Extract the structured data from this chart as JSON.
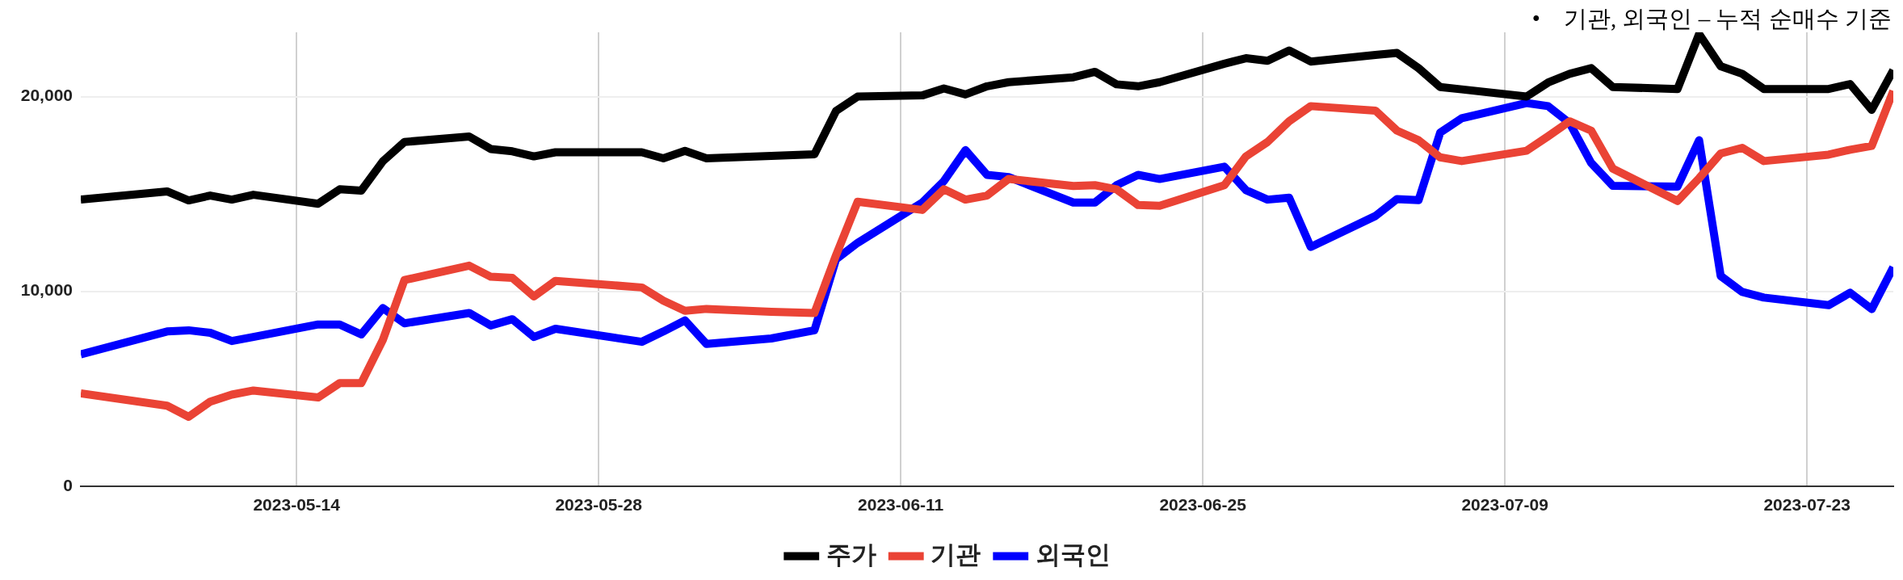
{
  "chart_data": {
    "type": "line",
    "x": [
      "2023-05-04",
      "2023-05-08",
      "2023-05-09",
      "2023-05-10",
      "2023-05-11",
      "2023-05-12",
      "2023-05-15",
      "2023-05-16",
      "2023-05-17",
      "2023-05-18",
      "2023-05-19",
      "2023-05-22",
      "2023-05-23",
      "2023-05-24",
      "2023-05-25",
      "2023-05-26",
      "2023-05-30",
      "2023-05-31",
      "2023-06-01",
      "2023-06-02",
      "2023-06-05",
      "2023-06-07",
      "2023-06-08",
      "2023-06-09",
      "2023-06-12",
      "2023-06-13",
      "2023-06-14",
      "2023-06-15",
      "2023-06-16",
      "2023-06-19",
      "2023-06-20",
      "2023-06-21",
      "2023-06-22",
      "2023-06-23",
      "2023-06-26",
      "2023-06-27",
      "2023-06-28",
      "2023-06-29",
      "2023-06-30",
      "2023-07-03",
      "2023-07-04",
      "2023-07-05",
      "2023-07-06",
      "2023-07-07",
      "2023-07-10",
      "2023-07-11",
      "2023-07-12",
      "2023-07-13",
      "2023-07-14",
      "2023-07-17",
      "2023-07-18",
      "2023-07-19",
      "2023-07-20",
      "2023-07-21",
      "2023-07-24",
      "2023-07-25",
      "2023-07-26",
      "2023-07-27"
    ],
    "series": [
      {
        "name": "주가",
        "color": "#000000",
        "values": [
          14710,
          15130,
          14670,
          14920,
          14710,
          14960,
          14500,
          15240,
          15170,
          16680,
          17670,
          17950,
          17310,
          17190,
          16930,
          17140,
          17140,
          16830,
          17210,
          16830,
          16950,
          17040,
          19260,
          20000,
          20060,
          20420,
          20110,
          20530,
          20740,
          20990,
          21270,
          20630,
          20530,
          20740,
          21690,
          21970,
          21840,
          22370,
          21800,
          22140,
          22240,
          21460,
          20490,
          20370,
          20000,
          20720,
          21170,
          21460,
          20490,
          20390,
          23210,
          21560,
          21170,
          20390,
          20390,
          20640,
          19320,
          21360
        ]
      },
      {
        "name": "기관",
        "color": "#ea4335",
        "values": [
          4760,
          4130,
          3560,
          4340,
          4700,
          4910,
          4550,
          5290,
          5290,
          7510,
          10580,
          11320,
          10750,
          10690,
          9740,
          10540,
          10200,
          9520,
          9000,
          9100,
          8950,
          8890,
          11850,
          14600,
          14180,
          15240,
          14710,
          14920,
          15770,
          15410,
          15450,
          15240,
          14430,
          14390,
          15450,
          16930,
          17670,
          18730,
          19510,
          19280,
          18250,
          17760,
          16880,
          16690,
          17220,
          17960,
          18730,
          18250,
          16300,
          14640,
          15810,
          17080,
          17370,
          16690,
          17020,
          17270,
          17470,
          20290
        ]
      },
      {
        "name": "외국인",
        "color": "#0000ff",
        "values": [
          6770,
          7940,
          8000,
          7870,
          7450,
          7660,
          8300,
          8300,
          7790,
          9140,
          8360,
          8890,
          8250,
          8570,
          7660,
          8080,
          7410,
          7940,
          8510,
          7300,
          7580,
          8000,
          11640,
          12490,
          14560,
          15660,
          17250,
          15980,
          15870,
          14560,
          14560,
          15450,
          15980,
          15770,
          16400,
          15200,
          14710,
          14810,
          12280,
          13870,
          14740,
          14680,
          18150,
          18890,
          19670,
          19510,
          18640,
          16590,
          15420,
          15380,
          17760,
          10790,
          9970,
          9680,
          9290,
          9930,
          9090,
          11240
        ]
      }
    ],
    "xlim": [
      "2023-05-04",
      "2023-07-27"
    ],
    "xticks": [
      "2023-05-14",
      "2023-05-28",
      "2023-06-11",
      "2023-06-25",
      "2023-07-09",
      "2023-07-23"
    ],
    "ylim": [
      0,
      23300
    ],
    "yticks": [
      {
        "value": 0,
        "label": "0"
      },
      {
        "value": 10000,
        "label": "10,000"
      },
      {
        "value": 20000,
        "label": "20,000"
      }
    ],
    "grid": true,
    "legend": "bottom",
    "marker": "none",
    "line_style": "solid",
    "annotations": [
      "•    기관, 외국인 – 누적 순매수 기준"
    ]
  }
}
